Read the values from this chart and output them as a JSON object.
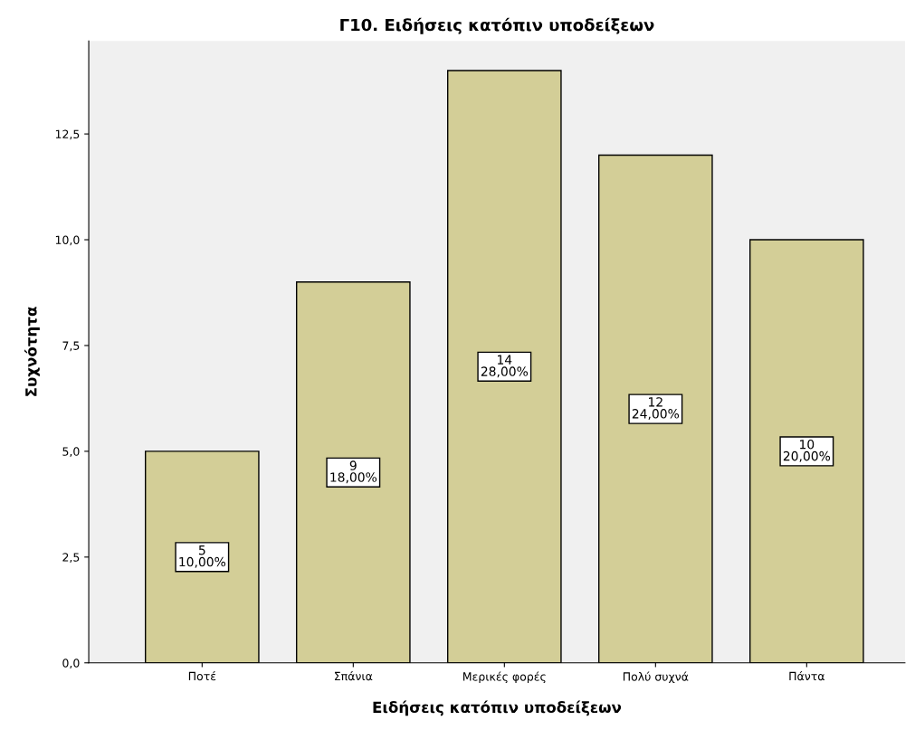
{
  "chart_data": {
    "type": "bar",
    "title": "Γ10. Ειδήσεις κατόπιν υποδείξεων",
    "xlabel": "Ειδήσεις κατόπιν υποδείξεων",
    "ylabel": "Συχνότητα",
    "categories": [
      "Ποτέ",
      "Σπάνια",
      "Μερικές φορές",
      "Πολύ συχνά",
      "Πάντα"
    ],
    "values": [
      5,
      9,
      14,
      12,
      10
    ],
    "value_labels": [
      "5\n10,00%",
      "9\n18,00%",
      "14\n28,00%",
      "12\n24,00%",
      "10\n20,00%"
    ],
    "color": "#d3ce97",
    "ylim": [
      0,
      14.7
    ],
    "yticks": [
      {
        "value": 0,
        "label": "0,0"
      },
      {
        "value": 2.5,
        "label": "2,5"
      },
      {
        "value": 5,
        "label": "5,0"
      },
      {
        "value": 7.5,
        "label": "7,5"
      },
      {
        "value": 10,
        "label": "10,0"
      },
      {
        "value": 12.5,
        "label": "12,5"
      }
    ],
    "grid": false
  }
}
